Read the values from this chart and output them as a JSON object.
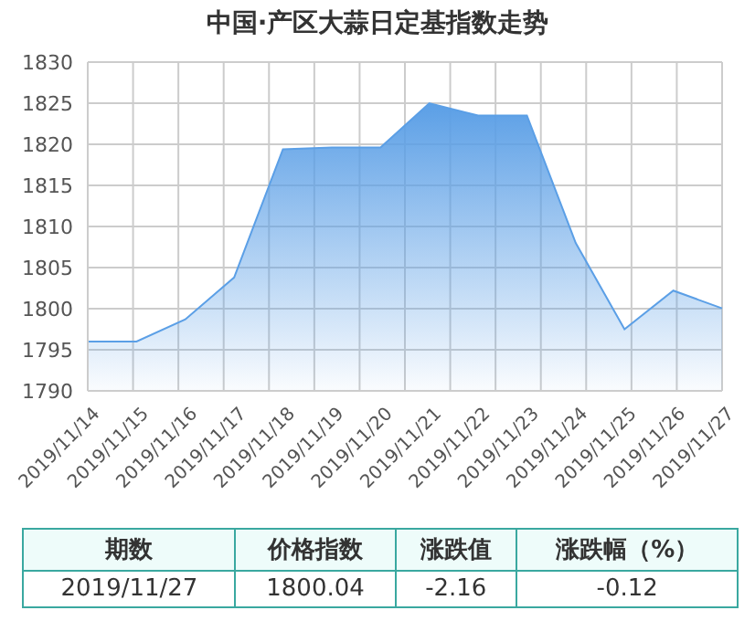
{
  "chart_data": {
    "type": "area",
    "title": "中国·产区大蒜日定基指数走势",
    "categories": [
      "2019/11/14",
      "2019/11/15",
      "2019/11/16",
      "2019/11/17",
      "2019/11/18",
      "2019/11/19",
      "2019/11/20",
      "2019/11/21",
      "2019/11/22",
      "2019/11/23",
      "2019/11/24",
      "2019/11/25",
      "2019/11/26",
      "2019/11/27"
    ],
    "series": [
      {
        "color": "#5b9fe6",
        "values": [
          1796,
          1796,
          1798.7,
          1803.8,
          1819.4,
          1819.6,
          1819.6,
          1825,
          1823.5,
          1823.5,
          1808,
          1797.5,
          1802.2,
          1800.04
        ]
      }
    ],
    "ylim": [
      1790,
      1830
    ],
    "yticks": [
      1790,
      1795,
      1800,
      1805,
      1810,
      1815,
      1820,
      1825,
      1830
    ],
    "grid": true,
    "annotations": [
      "期数",
      "价格指数",
      "涨跌值",
      "涨跌幅（%）",
      "2019/11/27",
      "1800.04",
      "-2.16",
      "-0.12"
    ]
  }
}
